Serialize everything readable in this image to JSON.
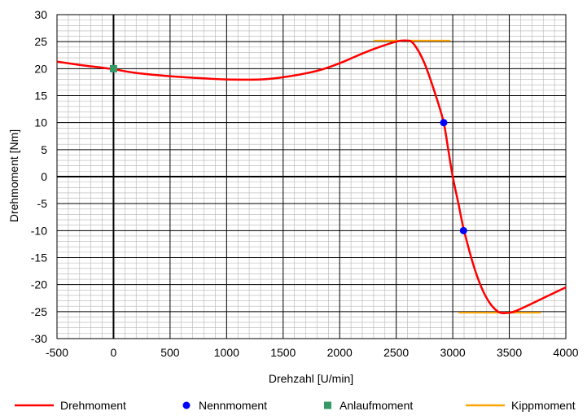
{
  "chart_data": {
    "type": "line",
    "xlabel": "Drehzahl [U/min]",
    "ylabel": "Drehmoment [Nm]",
    "xlim": [
      -500,
      4000
    ],
    "ylim": [
      -30,
      30
    ],
    "x_ticks": [
      -500,
      0,
      500,
      1000,
      1500,
      2000,
      2500,
      3000,
      3500,
      4000
    ],
    "y_ticks": [
      30,
      25,
      20,
      15,
      10,
      5,
      0,
      -5,
      -10,
      -15,
      -20,
      -25,
      -30
    ],
    "minor_grid_x_step": 100,
    "minor_grid_y_step": 1,
    "series": [
      {
        "name": "Drehmoment",
        "kind": "line",
        "color": "#ff0000",
        "x": [
          -500,
          -300,
          -150,
          0,
          200,
          500,
          800,
          1000,
          1300,
          1500,
          1800,
          2000,
          2200,
          2350,
          2500,
          2580,
          2650,
          2750,
          2850,
          2920,
          2960,
          3000,
          3050,
          3100,
          3200,
          3300,
          3400,
          3500,
          3600,
          3800,
          4000
        ],
        "y": [
          21.3,
          20.7,
          20.3,
          19.9,
          19.2,
          18.6,
          18.2,
          18.0,
          18.0,
          18.4,
          19.6,
          21.0,
          22.8,
          24.0,
          25.0,
          25.2,
          24.7,
          21.0,
          15.0,
          10.0,
          5.0,
          0,
          -5.0,
          -10.0,
          -17.5,
          -22.5,
          -25.0,
          -25.2,
          -24.5,
          -22.5,
          -20.5
        ]
      },
      {
        "name": "Nennmoment",
        "kind": "marker-circle",
        "color": "#0000ff",
        "x": [
          2920,
          3095
        ],
        "y": [
          10,
          -10
        ]
      },
      {
        "name": "Anlaufmoment",
        "kind": "marker-square",
        "color": "#339966",
        "x": [
          0
        ],
        "y": [
          20
        ]
      },
      {
        "name": "Kippmoment",
        "kind": "segments",
        "color": "#ffa500",
        "segments": [
          {
            "x": [
              2300,
              2980
            ],
            "y": [
              25.2,
              25.2
            ]
          },
          {
            "x": [
              3050,
              3780
            ],
            "y": [
              -25.2,
              -25.2
            ]
          }
        ]
      }
    ],
    "legend": [
      "Drehmoment",
      "Nennmoment",
      "Anlaufmoment",
      "Kippmoment"
    ],
    "legend_position": "bottom"
  }
}
